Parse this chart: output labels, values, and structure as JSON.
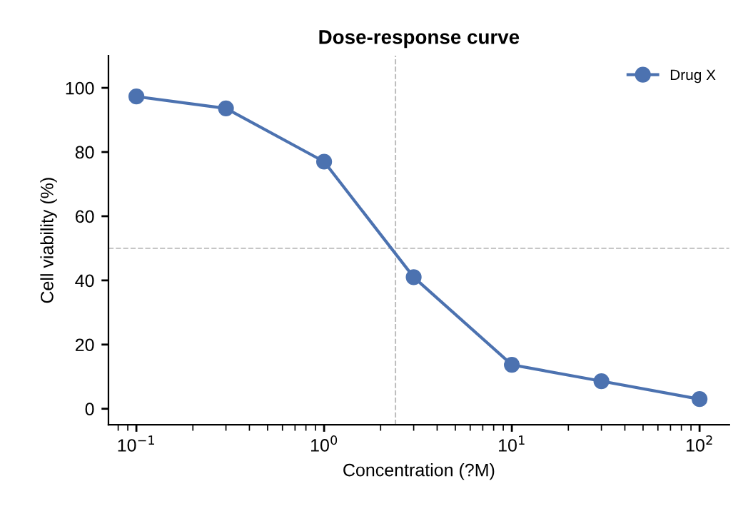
{
  "chart_data": {
    "type": "line",
    "title": "Dose-response curve",
    "xlabel": "Concentration (?M)",
    "ylabel": "Cell viability (%)",
    "x": [
      0.1,
      0.3,
      1,
      3,
      10,
      30,
      100
    ],
    "series": [
      {
        "name": "Drug X",
        "color": "#4c72b0",
        "values": [
          97.3,
          93.6,
          77,
          41,
          13.7,
          8.6,
          3
        ]
      }
    ],
    "log": "x",
    "xlim": [
      0.071,
      144
    ],
    "ylim": [
      -5,
      110
    ],
    "xticks": [
      {
        "value": 0.1,
        "label": "10$^{−1}$"
      },
      {
        "value": 1,
        "label": "10$^{0}$"
      },
      {
        "value": 10,
        "label": "10$^{1}$"
      },
      {
        "value": 100,
        "label": "10$^{2}$"
      }
    ],
    "yticks": [
      0,
      20,
      40,
      60,
      80,
      100
    ],
    "ref_lines": [
      {
        "axis": "x",
        "value": 2.4,
        "color": "#bbbbbb",
        "line_style": "dashed"
      },
      {
        "axis": "y",
        "value": 50,
        "color": "#bbbbbb",
        "line_style": "dashed"
      }
    ],
    "marker": "circle",
    "line_style": "solid",
    "grid": false,
    "legend": "top right"
  }
}
